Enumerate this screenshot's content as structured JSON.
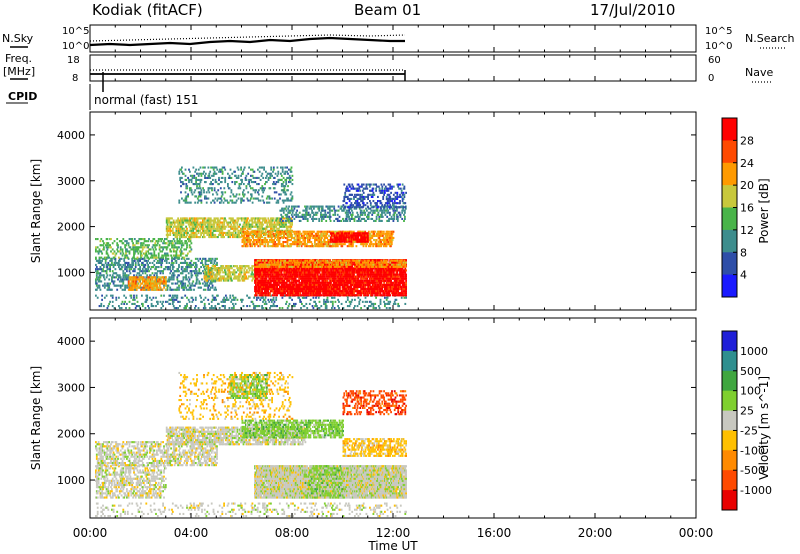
{
  "header": {
    "station": "Kodiak (fitACF)",
    "beam": "Beam 01",
    "date": "17/Jul/2010"
  },
  "side_labels": {
    "nsky": "N.Sky",
    "nsearch": "N.Search",
    "freq_line1": "Freq.",
    "freq_line2": "[MHz]",
    "nave": "Nave",
    "cpid": "CPID",
    "cpid_value": "normal (fast) 151"
  },
  "chart_data": [
    {
      "type": "line",
      "name": "noise",
      "y_left_ticks": [
        "10^5",
        "10^0"
      ],
      "y_right_ticks": [
        "10^5",
        "10^0"
      ],
      "series": [
        {
          "name": "N.Sky",
          "style": "solid"
        },
        {
          "name": "N.Search",
          "style": "dotted"
        }
      ],
      "x_range_hours": [
        0,
        24
      ],
      "data_end_hour": 12.5
    },
    {
      "type": "line",
      "name": "frequency-nave",
      "y_left_ticks": [
        "18",
        "8"
      ],
      "y_right_ticks": [
        "60",
        "0"
      ],
      "ylim_left": [
        8,
        18
      ],
      "ylim_right": [
        0,
        60
      ],
      "series": [
        {
          "name": "Freq.",
          "style": "solid",
          "approx_value": 10.6
        },
        {
          "name": "Nave",
          "style": "dotted",
          "approx_value": 17
        }
      ]
    },
    {
      "type": "heatmap",
      "name": "power",
      "ylabel": "Slant Range [km]",
      "y_ticks": [
        1000,
        2000,
        3000,
        4000
      ],
      "ylim": [
        180,
        4500
      ],
      "x_range_hours": [
        0,
        24
      ],
      "colorbar_label": "Power [dB]",
      "colorbar_ticks": [
        4,
        8,
        12,
        16,
        20,
        24,
        28
      ],
      "colorbar_colors": [
        "#1a1aff",
        "#2e4ea8",
        "#3d8d8d",
        "#49b449",
        "#c8c83c",
        "#ff9a00",
        "#ff4a00",
        "#ff0000"
      ],
      "bands": [
        {
          "t0": 0.2,
          "t1": 12.5,
          "r0": 200,
          "r1": 500,
          "level": 2,
          "density": 0.18
        },
        {
          "t0": 0.2,
          "t1": 5.0,
          "r0": 600,
          "r1": 1300,
          "level": 2,
          "density": 0.32
        },
        {
          "t0": 1.5,
          "t1": 3.0,
          "r0": 600,
          "r1": 900,
          "level": 5,
          "density": 0.55
        },
        {
          "t0": 4.5,
          "t1": 6.5,
          "r0": 800,
          "r1": 1150,
          "level": 4,
          "density": 0.5
        },
        {
          "t0": 6.5,
          "t1": 12.5,
          "r0": 480,
          "r1": 1250,
          "level": 7,
          "density": 0.85
        },
        {
          "t0": 6.5,
          "t1": 12.5,
          "r0": 1100,
          "r1": 1280,
          "level": 5,
          "density": 0.5
        },
        {
          "t0": 0.2,
          "t1": 4.0,
          "r0": 1300,
          "r1": 1750,
          "level": 3,
          "density": 0.3
        },
        {
          "t0": 3.0,
          "t1": 8.0,
          "r0": 1750,
          "r1": 2200,
          "level": 4,
          "density": 0.55
        },
        {
          "t0": 6.0,
          "t1": 12.0,
          "r0": 1550,
          "r1": 1900,
          "level": 5,
          "density": 0.55
        },
        {
          "t0": 9.5,
          "t1": 11.0,
          "r0": 1650,
          "r1": 1850,
          "level": 7,
          "density": 0.7
        },
        {
          "t0": 7.5,
          "t1": 12.5,
          "r0": 2100,
          "r1": 2450,
          "level": 2,
          "density": 0.35
        },
        {
          "t0": 3.5,
          "t1": 8.0,
          "r0": 2500,
          "r1": 3300,
          "level": 2,
          "density": 0.2
        },
        {
          "t0": 10.0,
          "t1": 12.5,
          "r0": 2400,
          "r1": 2900,
          "level": 1,
          "density": 0.3
        }
      ]
    },
    {
      "type": "heatmap",
      "name": "velocity",
      "ylabel": "Slant Range [km]",
      "y_ticks": [
        1000,
        2000,
        3000,
        4000
      ],
      "ylim": [
        180,
        4500
      ],
      "x_range_hours": [
        0,
        24
      ],
      "colorbar_label": "Velocity [m s^-1]",
      "colorbar_ticks": [
        1000,
        500,
        100,
        25,
        -25,
        -100,
        -500,
        -1000
      ],
      "colorbar_colors": [
        "#1f1fd8",
        "#2f8f8f",
        "#3fa63f",
        "#7fcf2f",
        "#c8c8c0",
        "#ffc000",
        "#ff8a00",
        "#ff4a00",
        "#e80000"
      ],
      "bands": [
        {
          "t0": 0.2,
          "t1": 12.5,
          "r0": 200,
          "r1": 500,
          "level": 4,
          "density": 0.15
        },
        {
          "t0": 0.2,
          "t1": 3.0,
          "r0": 600,
          "r1": 1300,
          "level": 4,
          "density": 0.4
        },
        {
          "t0": 6.5,
          "t1": 12.5,
          "r0": 600,
          "r1": 1300,
          "level": 4,
          "density": 0.9
        },
        {
          "t0": 8.5,
          "t1": 10.0,
          "r0": 600,
          "r1": 1300,
          "level": 3,
          "density": 0.35
        },
        {
          "t0": 0.2,
          "t1": 5.0,
          "r0": 1300,
          "r1": 1800,
          "level": 4,
          "density": 0.45
        },
        {
          "t0": 3.0,
          "t1": 8.5,
          "r0": 1750,
          "r1": 2150,
          "level": 4,
          "density": 0.6
        },
        {
          "t0": 6.0,
          "t1": 10.0,
          "r0": 1900,
          "r1": 2300,
          "level": 3,
          "density": 0.55
        },
        {
          "t0": 10.0,
          "t1": 12.5,
          "r0": 1500,
          "r1": 1900,
          "level": 5,
          "density": 0.45
        },
        {
          "t0": 5.5,
          "t1": 7.0,
          "r0": 2750,
          "r1": 3250,
          "level": 3,
          "density": 0.5
        },
        {
          "t0": 3.5,
          "t1": 8.0,
          "r0": 2300,
          "r1": 3300,
          "level": 5,
          "density": 0.15
        },
        {
          "t0": 10.0,
          "t1": 12.5,
          "r0": 2400,
          "r1": 2900,
          "level": 7,
          "density": 0.3
        }
      ]
    }
  ],
  "x_axis": {
    "ticks": [
      "00:00",
      "04:00",
      "08:00",
      "12:00",
      "16:00",
      "20:00",
      "00:00"
    ],
    "label": "Time UT"
  }
}
